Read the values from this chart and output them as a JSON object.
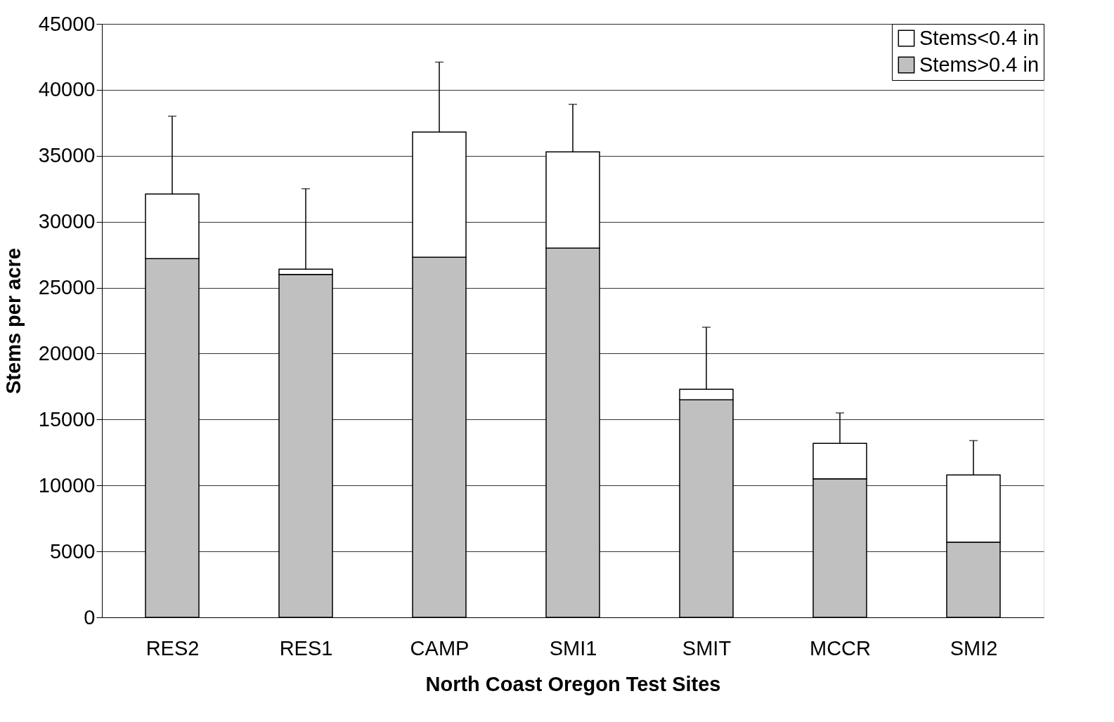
{
  "chart_data": {
    "type": "bar",
    "stacked": true,
    "xlabel": "North Coast Oregon Test Sites",
    "ylabel": "Stems per acre",
    "categories": [
      "RES2",
      "RES1",
      "CAMP",
      "SMI1",
      "SMIT",
      "MCCR",
      "SMI2"
    ],
    "series": [
      {
        "name": "Stems>0.4 in",
        "color": "#c0c0c0",
        "values": [
          27200,
          26000,
          27300,
          28000,
          16500,
          10500,
          5700
        ]
      },
      {
        "name": "Stems<0.4 in",
        "color": "#ffffff",
        "values": [
          4900,
          400,
          9500,
          7300,
          800,
          2700,
          5100
        ],
        "errors": [
          [
            32100,
            38000
          ],
          [
            26400,
            32500
          ],
          [
            36800,
            42100
          ],
          [
            35300,
            38900
          ],
          [
            17300,
            22000
          ],
          [
            13200,
            15500
          ],
          [
            10800,
            13400
          ]
        ]
      }
    ],
    "ylim": [
      0,
      45000
    ],
    "yticks": [
      0,
      5000,
      10000,
      15000,
      20000,
      25000,
      30000,
      35000,
      40000,
      45000
    ],
    "grid": "y",
    "legend": "top right"
  }
}
